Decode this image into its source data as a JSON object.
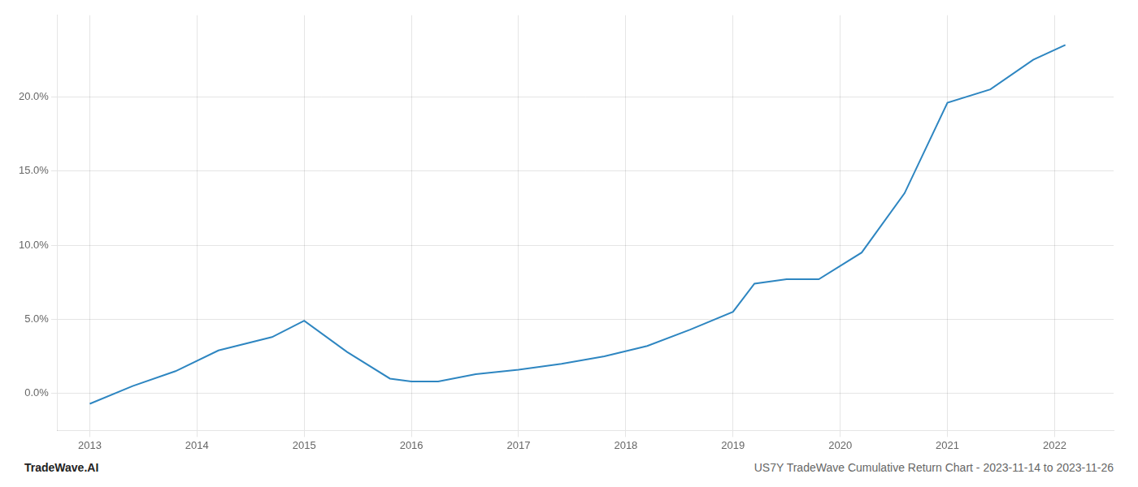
{
  "chart_data": {
    "type": "line",
    "x": [
      2013.0,
      2013.4,
      2013.8,
      2014.2,
      2014.7,
      2015.0,
      2015.4,
      2015.8,
      2016.0,
      2016.25,
      2016.6,
      2017.0,
      2017.4,
      2017.8,
      2018.2,
      2018.6,
      2019.0,
      2019.2,
      2019.5,
      2019.8,
      2020.2,
      2020.6,
      2021.0,
      2021.4,
      2021.8,
      2022.1
    ],
    "values": [
      -0.007,
      0.005,
      0.015,
      0.029,
      0.038,
      0.049,
      0.028,
      0.01,
      0.008,
      0.008,
      0.013,
      0.016,
      0.02,
      0.025,
      0.032,
      0.043,
      0.055,
      0.074,
      0.077,
      0.077,
      0.095,
      0.135,
      0.196,
      0.205,
      0.225,
      0.235
    ],
    "color": "#2e86c1",
    "xlim": [
      2012.7,
      2022.55
    ],
    "xticks": [
      2013,
      2014,
      2015,
      2016,
      2017,
      2018,
      2019,
      2020,
      2021,
      2022
    ],
    "ylim": [
      -0.025,
      0.255
    ],
    "yticks": [
      {
        "value": 0.0,
        "label": "0.0%"
      },
      {
        "value": 0.05,
        "label": "5.0%"
      },
      {
        "value": 0.1,
        "label": "10.0%"
      },
      {
        "value": 0.15,
        "label": "15.0%"
      },
      {
        "value": 0.2,
        "label": "20.0%"
      }
    ],
    "grid": true,
    "annotations": [
      "TradeWave.AI",
      "US7Y TradeWave Cumulative Return Chart - 2023-11-14 to 2023-11-26"
    ]
  }
}
